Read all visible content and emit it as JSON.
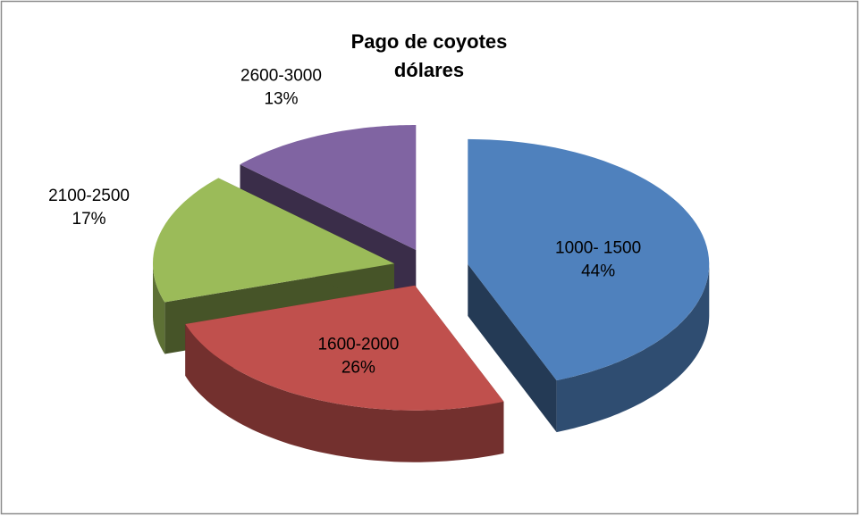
{
  "chart_data": {
    "type": "pie3d",
    "title": [
      "Pago de coyotes",
      "dólares"
    ],
    "categories": [
      "1000- 1500",
      "1600-2000",
      "2100-2500",
      "2600-3000"
    ],
    "values": [
      44,
      26,
      17,
      13
    ],
    "value_labels": [
      "44%",
      "26%",
      "17%",
      "13%"
    ],
    "colors": [
      "#4f81bd",
      "#c0504d",
      "#9bbb59",
      "#8064a2"
    ]
  }
}
